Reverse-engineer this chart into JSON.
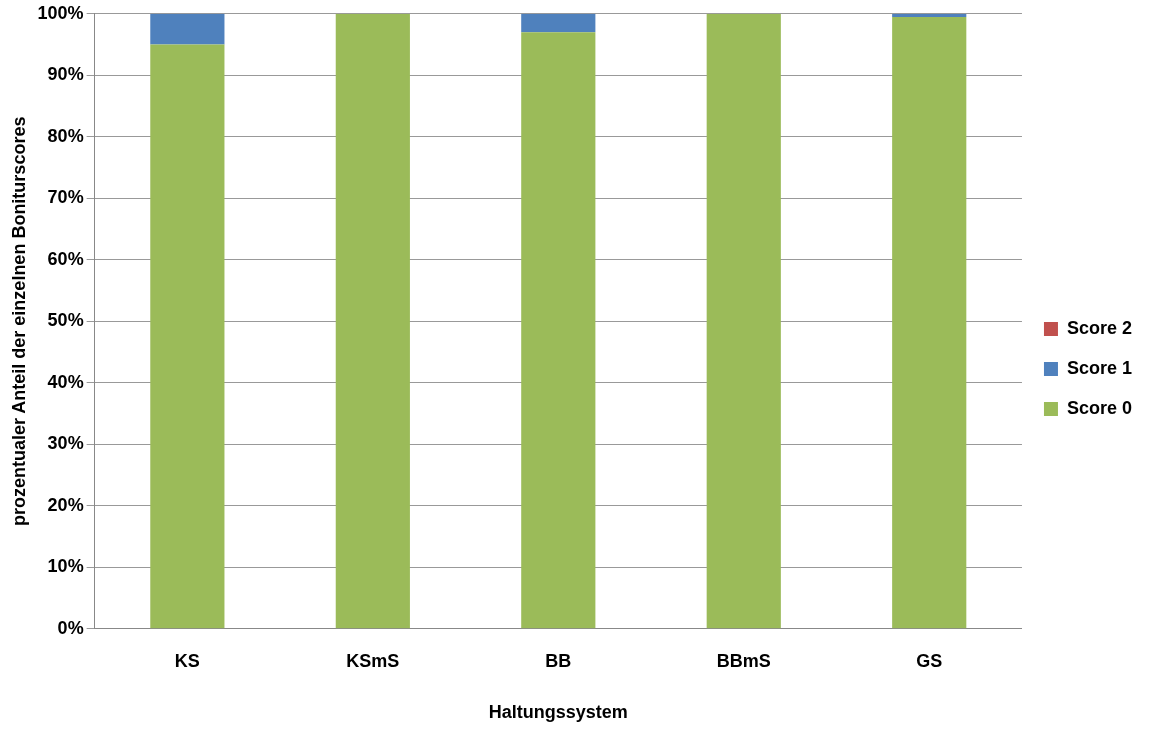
{
  "chart_data": {
    "type": "bar",
    "stacked": true,
    "xlabel": "Haltungssystem",
    "ylabel": "prozentualer Anteil der einzelnen Boniturscores",
    "categories": [
      "KS",
      "KSmS",
      "BB",
      "BBmS",
      "GS"
    ],
    "series": [
      {
        "name": "Score 0",
        "color": "#9bbb59",
        "values": [
          95,
          100,
          97,
          100,
          99.5
        ]
      },
      {
        "name": "Score 1",
        "color": "#4f81bd",
        "values": [
          5,
          0,
          3,
          0,
          0.5
        ]
      },
      {
        "name": "Score 2",
        "color": "#c0504d",
        "values": [
          0,
          0,
          0,
          0,
          0
        ]
      }
    ],
    "ylim": [
      0,
      100
    ],
    "yticks": [
      {
        "value": 0,
        "label": "0%"
      },
      {
        "value": 10,
        "label": "10%"
      },
      {
        "value": 20,
        "label": "20%"
      },
      {
        "value": 30,
        "label": "30%"
      },
      {
        "value": 40,
        "label": "40%"
      },
      {
        "value": 50,
        "label": "50%"
      },
      {
        "value": 60,
        "label": "60%"
      },
      {
        "value": 70,
        "label": "70%"
      },
      {
        "value": 80,
        "label": "80%"
      },
      {
        "value": 90,
        "label": "90%"
      },
      {
        "value": 100,
        "label": "100%"
      }
    ],
    "grid": "y",
    "legend": "right"
  }
}
